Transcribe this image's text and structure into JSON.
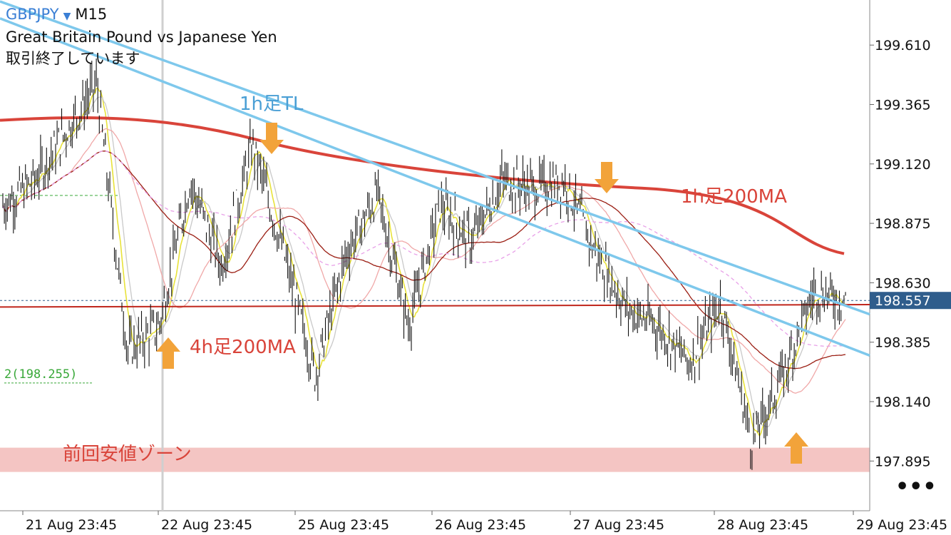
{
  "header": {
    "symbol": "GBPJPY",
    "dropdown_icon": "▼",
    "timeframe": "M15",
    "description": "Great Britain Pound vs Japanese Yen",
    "status": "取引終了しています"
  },
  "menu_icon": "•••",
  "colors": {
    "bull_bear_bars": "#111111",
    "trendline": "#7ec8ec",
    "ma_1h_200": "#d9443a",
    "ma_4h_200": "#c0261c",
    "zone_fill": "#f4c5c3",
    "arrow": "#f2a33a",
    "current_price": "#2f5d8c",
    "annotation_blue": "#4a9fd5",
    "annotation_red": "#d9443a",
    "level_label": "#39a839"
  },
  "chart_data": {
    "type": "candlestick",
    "symbol": "GBPJPY",
    "timeframe": "M15",
    "ylim": [
      197.69,
      199.79
    ],
    "y_ticks": [
      "199.610",
      "199.365",
      "199.120",
      "198.875",
      "198.630",
      "198.385",
      "198.140",
      "197.895"
    ],
    "x_ticks": [
      "21 Aug 23:45",
      "22 Aug 23:45",
      "25 Aug 23:45",
      "26 Aug 23:45",
      "27 Aug 23:45",
      "28 Aug 23:45",
      "29 Aug 23:45"
    ],
    "current_price": "198.557",
    "level_label": "2(198.255)",
    "level_value": 198.255,
    "price_path": [
      [
        "21 Aug 23:45",
        198.95
      ],
      [
        "21 Aug 23:45",
        199.05
      ],
      [
        "21 Aug 23:45",
        199.25
      ],
      [
        "21 Aug 23:45",
        199.45
      ],
      [
        "21 Aug 23:45",
        198.35
      ],
      [
        "22 Aug 23:45",
        198.45
      ],
      [
        "22 Aug 23:45",
        199.05
      ],
      [
        "22 Aug 23:45",
        198.7
      ],
      [
        "22 Aug 23:45",
        199.2
      ],
      [
        "22 Aug 23:45",
        198.75
      ],
      [
        "25 Aug 23:45",
        198.25
      ],
      [
        "25 Aug 23:45",
        198.75
      ],
      [
        "25 Aug 23:45",
        199.0
      ],
      [
        "26 Aug 23:45",
        198.45
      ],
      [
        "26 Aug 23:45",
        198.95
      ],
      [
        "26 Aug 23:45",
        198.8
      ],
      [
        "26 Aug 23:45",
        199.05
      ],
      [
        "27 Aug 23:45",
        199.02
      ],
      [
        "27 Aug 23:45",
        199.05
      ],
      [
        "27 Aug 23:45",
        198.75
      ],
      [
        "27 Aug 23:45",
        198.52
      ],
      [
        "28 Aug 23:45",
        198.45
      ],
      [
        "28 Aug 23:45",
        198.3
      ],
      [
        "28 Aug 23:45",
        198.55
      ],
      [
        "28 Aug 23:45",
        197.97
      ],
      [
        "28 Aug 23:45",
        198.25
      ],
      [
        "28 Aug 23:45",
        198.6
      ],
      [
        "29 Aug 23:45",
        198.557
      ]
    ],
    "ma_1h_200": {
      "start": 199.3,
      "end": 198.75
    },
    "ma_4h_200": {
      "start": 198.53,
      "end": 198.54
    },
    "trendlines": [
      {
        "start": 199.79,
        "end": 198.5
      },
      {
        "start": 199.72,
        "end": 198.33
      }
    ],
    "zone": {
      "label": "前回安値ゾーン",
      "from": 197.85,
      "to": 197.95
    }
  },
  "annotations": {
    "tl_1h": "1h足TL",
    "ma_1h": "1h足200MA",
    "ma_4h": "4h足200MA",
    "zone": "前回安値ゾーン"
  }
}
